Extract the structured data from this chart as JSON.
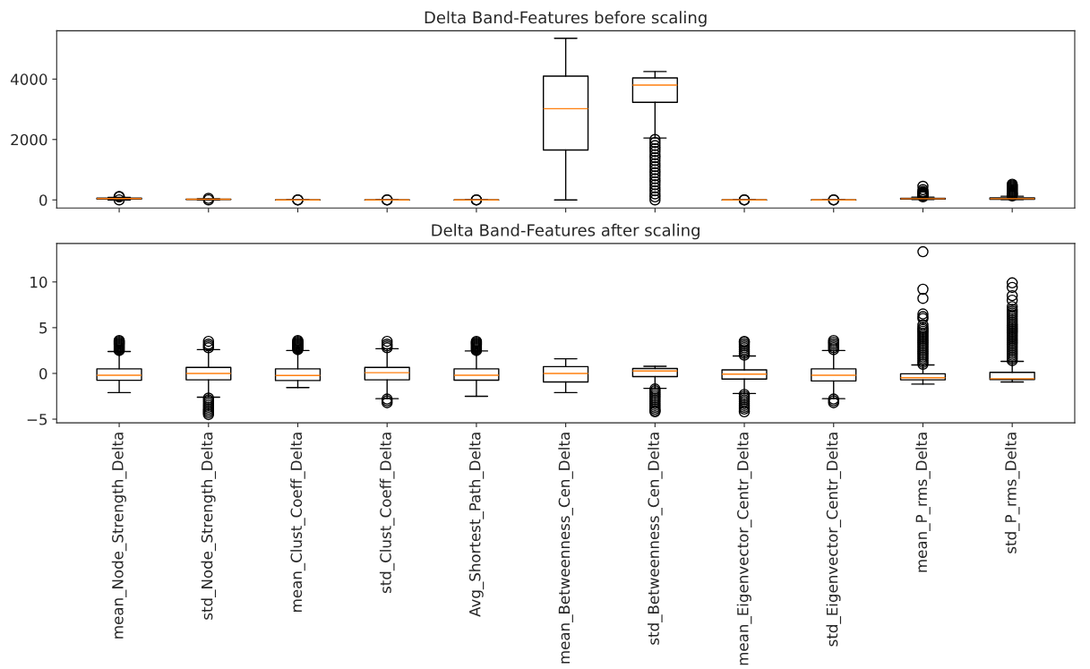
{
  "chart_data": [
    {
      "type": "box",
      "title": "Delta Band-Features before scaling",
      "tick_labels": "y",
      "ylim": [
        -270,
        5600
      ],
      "yticks": [
        0,
        2000,
        4000
      ],
      "boxes": [
        {
          "low": 0,
          "q1": 30,
          "median": 45,
          "q3": 60,
          "high": 80,
          "outliers": [
            100,
            110,
            0
          ]
        },
        {
          "low": 0,
          "q1": 10,
          "median": 20,
          "q3": 25,
          "high": 40,
          "outliers": [
            0,
            50
          ]
        },
        {
          "low": -1,
          "q1": -0.5,
          "median": 0,
          "q3": 0.5,
          "high": 1,
          "outliers": [
            -2,
            2
          ]
        },
        {
          "low": -1,
          "q1": -0.5,
          "median": 0,
          "q3": 0.5,
          "high": 1,
          "outliers": [
            -2,
            2
          ]
        },
        {
          "low": -1,
          "q1": -0.5,
          "median": 0,
          "q3": 0.5,
          "high": 1,
          "outliers": [
            -2,
            2
          ]
        },
        {
          "low": 0,
          "q1": 1650,
          "median": 3020,
          "q3": 4100,
          "high": 5350
        },
        {
          "low": 2050,
          "q1": 3230,
          "median": 3800,
          "q3": 4040,
          "high": 4250,
          "outliers": [
            2000,
            1900,
            1800,
            1700,
            1600,
            1500,
            1400,
            1300,
            1200,
            1100,
            1000,
            900,
            800,
            700,
            600,
            500,
            400,
            300,
            200,
            100,
            0
          ]
        },
        {
          "low": -1,
          "q1": -0.5,
          "median": 0,
          "q3": 0.5,
          "high": 1,
          "outliers": [
            -2,
            2
          ]
        },
        {
          "low": -1,
          "q1": -0.5,
          "median": 0,
          "q3": 0.5,
          "high": 1,
          "outliers": [
            -2,
            2
          ]
        },
        {
          "low": 10,
          "q1": 30,
          "median": 40,
          "q3": 55,
          "high": 90,
          "outliers": [
            100,
            130,
            160,
            190,
            220,
            250,
            280,
            340,
            450
          ]
        },
        {
          "low": 10,
          "q1": 20,
          "median": 40,
          "q3": 70,
          "high": 120,
          "outliers": [
            130,
            160,
            190,
            220,
            250,
            280,
            310,
            340,
            370,
            400,
            430,
            460,
            490,
            520
          ]
        }
      ]
    },
    {
      "type": "box",
      "title": "Delta Band-Features after scaling",
      "ylim": [
        -5.4,
        14.2
      ],
      "yticks": [
        {
          "value": -5,
          "label": "−5"
        },
        0,
        5,
        10
      ],
      "categories": [
        "mean_Node_Strength_Delta",
        "std_Node_Strength_Delta",
        "mean_Clust_Coeff_Delta",
        "std_Clust_Coeff_Delta",
        "Avg_Shortest_Path_Delta",
        "mean_Betweenness_Cen_Delta",
        "std_Betweenness_Cen_Delta",
        "mean_Eigenvector_Centr_Delta",
        "std_Eigenvector_Centr_Delta",
        "mean_P_rms_Delta",
        "std_P_rms_Delta"
      ],
      "boxes": [
        {
          "low": -2.1,
          "q1": -0.75,
          "median": -0.2,
          "q3": 0.5,
          "high": 2.4,
          "outliers": [
            2.5,
            2.6,
            2.7,
            2.8,
            2.9,
            3.0,
            3.1,
            3.2,
            3.3,
            3.4,
            3.5,
            3.6
          ]
        },
        {
          "low": -2.6,
          "q1": -0.7,
          "median": 0,
          "q3": 0.65,
          "high": 2.6,
          "outliers": [
            2.8,
            3.0,
            3.2,
            3.5,
            -2.7,
            -2.9,
            -3.1,
            -3.3,
            -3.5,
            -3.7,
            -3.9,
            -4.1,
            -4.3,
            -4.5
          ]
        },
        {
          "low": -1.55,
          "q1": -0.78,
          "median": -0.23,
          "q3": 0.5,
          "high": 2.5,
          "outliers": [
            2.6,
            2.7,
            2.8,
            2.9,
            3.0,
            3.1,
            3.2,
            3.3,
            3.4,
            3.5,
            3.6
          ]
        },
        {
          "low": -2.76,
          "q1": -0.7,
          "median": 0.08,
          "q3": 0.66,
          "high": 2.7,
          "outliers": [
            2.8,
            3.0,
            3.2,
            3.5,
            -2.8,
            -3.0,
            -3.2
          ]
        },
        {
          "low": -2.5,
          "q1": -0.74,
          "median": -0.2,
          "q3": 0.5,
          "high": 2.45,
          "outliers": [
            2.5,
            2.6,
            2.7,
            2.8,
            2.9,
            3.0,
            3.1,
            3.2,
            3.3,
            3.4,
            3.5
          ]
        },
        {
          "low": -2.1,
          "q1": -0.93,
          "median": 0,
          "q3": 0.74,
          "high": 1.6
        },
        {
          "low": -1.63,
          "q1": -0.35,
          "median": 0.27,
          "q3": 0.54,
          "high": 0.78,
          "outliers": [
            -1.7,
            -1.9,
            -2.1,
            -2.3,
            -2.5,
            -2.7,
            -2.9,
            -3.1,
            -3.3,
            -3.5,
            -3.7,
            -3.9,
            -4.1,
            -4.2
          ]
        },
        {
          "low": -2.2,
          "q1": -0.62,
          "median": -0.08,
          "q3": 0.39,
          "high": 1.9,
          "outliers": [
            2.0,
            2.2,
            2.4,
            2.6,
            2.8,
            3.0,
            3.2,
            3.4,
            3.5,
            -2.3,
            -2.5,
            -2.7,
            -2.9,
            -3.1,
            -3.3,
            -3.5,
            -3.7,
            -3.9,
            -4.2
          ]
        },
        {
          "low": -2.76,
          "q1": -0.82,
          "median": -0.2,
          "q3": 0.5,
          "high": 2.5,
          "outliers": [
            2.6,
            2.8,
            3.0,
            3.2,
            3.4,
            3.6,
            -2.8,
            -3.0,
            -3.2
          ]
        },
        {
          "low": -1.17,
          "q1": -0.7,
          "median": -0.47,
          "q3": -0.04,
          "high": 0.93,
          "outliers": [
            1.0,
            1.2,
            1.4,
            1.6,
            1.8,
            2.0,
            2.2,
            2.4,
            2.6,
            2.8,
            3.0,
            3.2,
            3.4,
            3.6,
            3.8,
            4.0,
            4.2,
            4.4,
            4.6,
            4.8,
            5.0,
            5.3,
            6.0,
            6.2,
            6.5,
            8.2,
            9.2,
            13.3
          ]
        },
        {
          "low": -0.93,
          "q1": -0.66,
          "median": -0.58,
          "q3": 0.12,
          "high": 1.32,
          "outliers": [
            1.4,
            1.6,
            1.8,
            2.0,
            2.2,
            2.4,
            2.6,
            2.8,
            3.0,
            3.2,
            3.4,
            3.6,
            3.8,
            4.0,
            4.2,
            4.4,
            4.6,
            4.8,
            5.0,
            5.2,
            5.4,
            5.6,
            5.8,
            6.0,
            6.2,
            6.4,
            6.6,
            6.8,
            7.0,
            7.3,
            8.0,
            8.5,
            9.4,
            9.9
          ]
        }
      ]
    }
  ]
}
